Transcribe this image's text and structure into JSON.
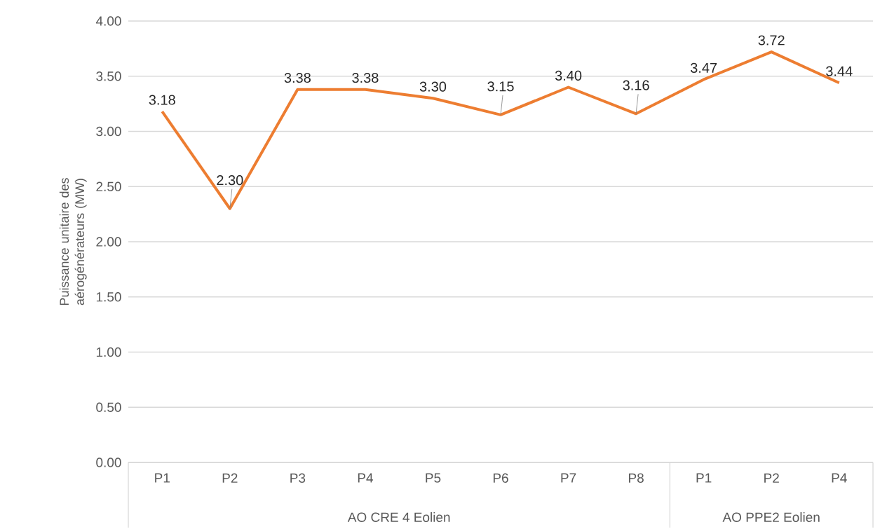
{
  "chart_data": {
    "type": "line",
    "categories": [
      "P1",
      "P2",
      "P3",
      "P4",
      "P5",
      "P6",
      "P7",
      "P8",
      "P1",
      "P2",
      "P4"
    ],
    "series": [
      {
        "color": "#ed7d31",
        "values": [
          3.18,
          2.3,
          3.38,
          3.38,
          3.3,
          3.15,
          3.4,
          3.16,
          3.47,
          3.72,
          3.44
        ],
        "value_labels": [
          "3.18",
          "2.30",
          "3.38",
          "3.38",
          "3.30",
          "3.15",
          "3.40",
          "3.16",
          "3.47",
          "3.72",
          "3.44"
        ]
      }
    ],
    "ylabel": "Puissance unitaire des aérogénérateurs (MW)",
    "ylim": [
      0,
      4
    ],
    "yticks": [
      {
        "value": 0,
        "label": "0.00"
      },
      {
        "value": 0.5,
        "label": "0.50"
      },
      {
        "value": 1,
        "label": "1.00"
      },
      {
        "value": 1.5,
        "label": "1.50"
      },
      {
        "value": 2,
        "label": "2.00"
      },
      {
        "value": 2.5,
        "label": "2.50"
      },
      {
        "value": 3,
        "label": "3.00"
      },
      {
        "value": 3.5,
        "label": "3.50"
      },
      {
        "value": 4,
        "label": "4.00"
      }
    ],
    "annotations": [
      "AO CRE 4 Eolien",
      "AO PPE2 Eolien"
    ],
    "grid": "y",
    "marker": "none",
    "line_style": "solid"
  }
}
